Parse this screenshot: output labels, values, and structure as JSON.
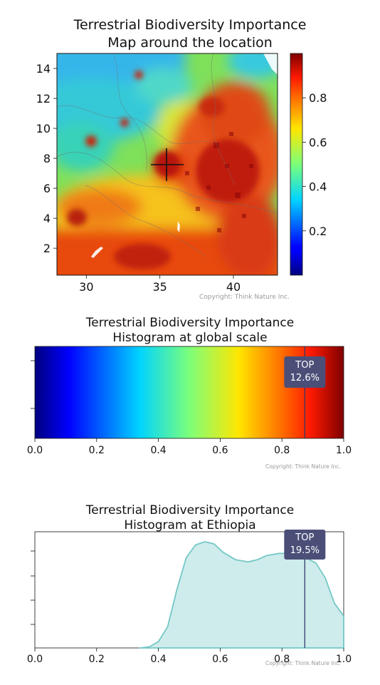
{
  "map": {
    "title_line1": "Terrestrial Biodiversity Importance",
    "title_line2": "Map around the location",
    "x_ticks": [
      "30",
      "35",
      "40"
    ],
    "y_ticks": [
      "2",
      "4",
      "6",
      "8",
      "10",
      "12",
      "14"
    ],
    "colorbar_ticks": [
      "0.2",
      "0.4",
      "0.6",
      "0.8"
    ],
    "copyright": "Copyright: Think Nature Inc."
  },
  "global_hist": {
    "title_line1": "Terrestrial Biodiversity Importance",
    "title_line2": "Histogram at global scale",
    "x_ticks": [
      "0.0",
      "0.2",
      "0.4",
      "0.6",
      "0.8",
      "1.0"
    ],
    "badge_line1": "TOP",
    "badge_line2": "12.6%",
    "copyright": "Copyright: Think Nature Inc."
  },
  "country_hist": {
    "title_line1": "Terrestrial Biodiversity Importance",
    "title_line2": "Histogram at Ethiopia",
    "x_ticks": [
      "0.0",
      "0.2",
      "0.4",
      "0.6",
      "0.8",
      "1.0"
    ],
    "badge_line1": "TOP",
    "badge_line2": "19.5%",
    "copyright": "Copyright: Think Nature Inc."
  },
  "colors": {
    "badge_bg": "#4b4f78",
    "badge_text": "#ffffff",
    "density_fill": "#cdeceb",
    "density_stroke": "#74c7c7",
    "marker_line": "#34396a"
  },
  "chart_data": [
    {
      "type": "heatmap",
      "title": "Terrestrial Biodiversity Importance Map around the location",
      "xlim": [
        28,
        43
      ],
      "ylim": [
        0.2,
        15
      ],
      "x_ticks": [
        30,
        35,
        40
      ],
      "y_ticks": [
        2,
        4,
        6,
        8,
        10,
        12,
        14
      ],
      "colorbar": {
        "cmap": "jet",
        "range": [
          0,
          1
        ],
        "ticks": [
          0.2,
          0.4,
          0.6,
          0.8
        ]
      },
      "marker": {
        "x": 35.4,
        "y": 7.5,
        "symbol": "cross"
      }
    },
    {
      "type": "bar",
      "title": "Terrestrial Biodiversity Importance Histogram at global scale",
      "xlim": [
        0,
        1
      ],
      "x_ticks": [
        0,
        0.2,
        0.4,
        0.6,
        0.8,
        1.0
      ],
      "colorbar": {
        "cmap": "jet",
        "range": [
          0,
          1
        ]
      },
      "threshold": 0.874,
      "top_percent": 12.6
    },
    {
      "type": "area",
      "title": "Terrestrial Biodiversity Importance Histogram at Ethiopia",
      "xlim": [
        0,
        1
      ],
      "x_ticks": [
        0,
        0.2,
        0.4,
        0.6,
        0.8,
        1.0
      ],
      "threshold": 0.874,
      "top_percent": 19.5,
      "x": [
        0.34,
        0.37,
        0.4,
        0.43,
        0.46,
        0.49,
        0.52,
        0.55,
        0.58,
        0.61,
        0.65,
        0.69,
        0.72,
        0.75,
        0.79,
        0.83,
        0.87,
        0.91,
        0.94,
        0.97,
        1.0
      ],
      "y": [
        0.0,
        0.01,
        0.06,
        0.2,
        0.55,
        0.85,
        0.97,
        1.0,
        0.98,
        0.9,
        0.83,
        0.81,
        0.83,
        0.87,
        0.89,
        0.89,
        0.86,
        0.8,
        0.66,
        0.42,
        0.3
      ]
    }
  ]
}
